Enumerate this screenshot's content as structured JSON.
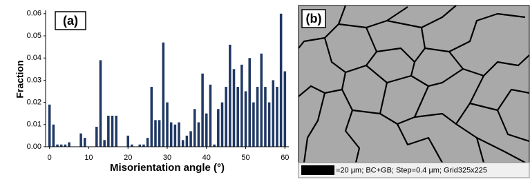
{
  "chart_data": {
    "type": "bar",
    "panel_label": "(a)",
    "x_label": "Misorientation angle (°)",
    "y_label": "Fraction",
    "x": [
      0,
      1,
      2,
      3,
      4,
      5,
      6,
      7,
      8,
      9,
      10,
      11,
      12,
      13,
      14,
      15,
      16,
      17,
      18,
      19,
      20,
      21,
      22,
      23,
      24,
      25,
      26,
      27,
      28,
      29,
      30,
      31,
      32,
      33,
      34,
      35,
      36,
      37,
      38,
      39,
      40,
      41,
      42,
      43,
      44,
      45,
      46,
      47,
      48,
      49,
      50,
      51,
      52,
      53,
      54,
      55,
      56,
      57,
      58,
      59,
      60
    ],
    "values": [
      0.019,
      0.01,
      0.001,
      0.001,
      0.001,
      0.002,
      0,
      0,
      0.006,
      0.004,
      0,
      0,
      0.009,
      0.039,
      0.003,
      0.014,
      0.014,
      0.014,
      0,
      0,
      0.005,
      0.001,
      0,
      0.001,
      0.001,
      0.004,
      0.027,
      0.012,
      0.012,
      0.047,
      0.02,
      0.011,
      0.01,
      0.011,
      0.003,
      0.005,
      0.007,
      0.017,
      0.011,
      0.033,
      0.015,
      0.028,
      0.001,
      0.017,
      0.02,
      0.027,
      0.046,
      0.035,
      0.027,
      0.037,
      0.025,
      0.04,
      0.02,
      0.027,
      0.042,
      0.027,
      0.02,
      0.03,
      0.027,
      0.06,
      0.034
    ],
    "color": "#1f3864",
    "xlim": [
      -1,
      61
    ],
    "xticks": [
      0,
      10,
      20,
      30,
      40,
      50,
      60
    ],
    "ylim": [
      0,
      0.0615
    ],
    "yticks": [
      {
        "value": 0,
        "label": "0.00"
      },
      {
        "value": 0.01,
        "label": "0.01"
      },
      {
        "value": 0.02,
        "label": "0.02"
      },
      {
        "value": 0.03,
        "label": "0.03"
      },
      {
        "value": 0.04,
        "label": "0.04"
      },
      {
        "value": 0.05,
        "label": "0.05"
      },
      {
        "value": 0.06,
        "label": "0.06"
      }
    ]
  },
  "image_panel": {
    "label": "(b)",
    "caption": "=20 µm; BC+GB; Step=0.4 µm; Grid325x225"
  }
}
